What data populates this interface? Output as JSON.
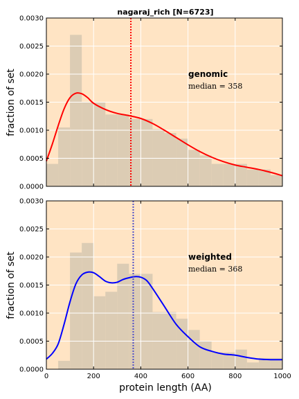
{
  "chart_data": [
    {
      "type": "area",
      "title": "nagaraj_rich [N=6723]",
      "ylabel": "fraction of set",
      "xlabel": "",
      "xlim": [
        0,
        1000
      ],
      "ylim": [
        0,
        0.003
      ],
      "grid": true,
      "x_ticks": [
        "0",
        "200",
        "400",
        "600",
        "800",
        "1000"
      ],
      "y_ticks": [
        "0.0000",
        "0.0005",
        "0.0010",
        "0.0015",
        "0.0020",
        "0.0025",
        "0.0030"
      ],
      "histogram": {
        "bin_width": 50,
        "bin_starts": [
          0,
          50,
          100,
          150,
          200,
          250,
          300,
          350,
          400,
          450,
          500,
          550,
          600,
          650,
          700,
          750,
          800,
          850,
          900,
          950
        ],
        "values": [
          0.0004,
          0.00105,
          0.0027,
          0.0015,
          0.0015,
          0.00128,
          0.00128,
          0.0012,
          0.0012,
          0.00102,
          0.00095,
          0.00085,
          0.00065,
          0.00055,
          0.0004,
          0.0004,
          0.0004,
          0.0003,
          0.0003,
          0.0002
        ]
      },
      "kde": {
        "x": [
          0,
          25,
          50,
          75,
          100,
          125,
          150,
          175,
          200,
          250,
          300,
          350,
          400,
          450,
          500,
          550,
          600,
          650,
          700,
          750,
          800,
          850,
          900,
          950,
          1000
        ],
        "y": [
          0.00045,
          0.00075,
          0.00108,
          0.00138,
          0.00158,
          0.00166,
          0.00165,
          0.00158,
          0.00148,
          0.00137,
          0.0013,
          0.00126,
          0.00121,
          0.00112,
          0.001,
          0.00087,
          0.00074,
          0.00062,
          0.00052,
          0.00044,
          0.00038,
          0.00034,
          0.0003,
          0.00025,
          0.00019
        ]
      },
      "median": 358,
      "label": "genomic",
      "median_label": "median = 358",
      "line_color": "#ff0000"
    },
    {
      "type": "area",
      "title": "",
      "ylabel": "fraction of set",
      "xlabel": "protein length (AA)",
      "xlim": [
        0,
        1000
      ],
      "ylim": [
        0,
        0.003
      ],
      "grid": true,
      "x_ticks": [
        "0",
        "200",
        "400",
        "600",
        "800",
        "1000"
      ],
      "y_ticks": [
        "0.0000",
        "0.0005",
        "0.0010",
        "0.0015",
        "0.0020",
        "0.0025",
        "0.0030"
      ],
      "histogram": {
        "bin_width": 50,
        "bin_starts": [
          0,
          50,
          100,
          150,
          200,
          250,
          300,
          350,
          400,
          450,
          500,
          550,
          600,
          650,
          700,
          750,
          800,
          850,
          900,
          950
        ],
        "values": [
          0.0,
          0.00015,
          0.00208,
          0.00225,
          0.0013,
          0.00138,
          0.00188,
          0.0017,
          0.0017,
          0.00102,
          0.00102,
          0.0009,
          0.0007,
          0.0005,
          0.0003,
          0.0003,
          0.00035,
          0.00012,
          0.0002,
          0.0002
        ]
      },
      "kde": {
        "x": [
          0,
          25,
          50,
          75,
          100,
          125,
          150,
          175,
          200,
          225,
          250,
          275,
          300,
          325,
          350,
          375,
          400,
          425,
          450,
          500,
          550,
          600,
          650,
          700,
          750,
          800,
          850,
          900,
          950,
          1000
        ],
        "y": [
          0.00018,
          0.00028,
          0.00045,
          0.0008,
          0.0012,
          0.00152,
          0.00168,
          0.00173,
          0.00172,
          0.00165,
          0.00157,
          0.00154,
          0.00155,
          0.0016,
          0.00163,
          0.00165,
          0.00164,
          0.00158,
          0.00144,
          0.00112,
          0.0008,
          0.00058,
          0.0004,
          0.00032,
          0.00027,
          0.00025,
          0.00021,
          0.00018,
          0.00017,
          0.00017
        ]
      },
      "median": 368,
      "label": "weighted",
      "median_label": "median = 368",
      "line_color": "#0000ff"
    }
  ],
  "colors": {
    "panel_background": "#ffe4c4",
    "histogram_fill": "#dcccb4",
    "grid": "#ffffff",
    "median_line_top": "#ff0000",
    "median_line_bottom": "#5050c8"
  }
}
